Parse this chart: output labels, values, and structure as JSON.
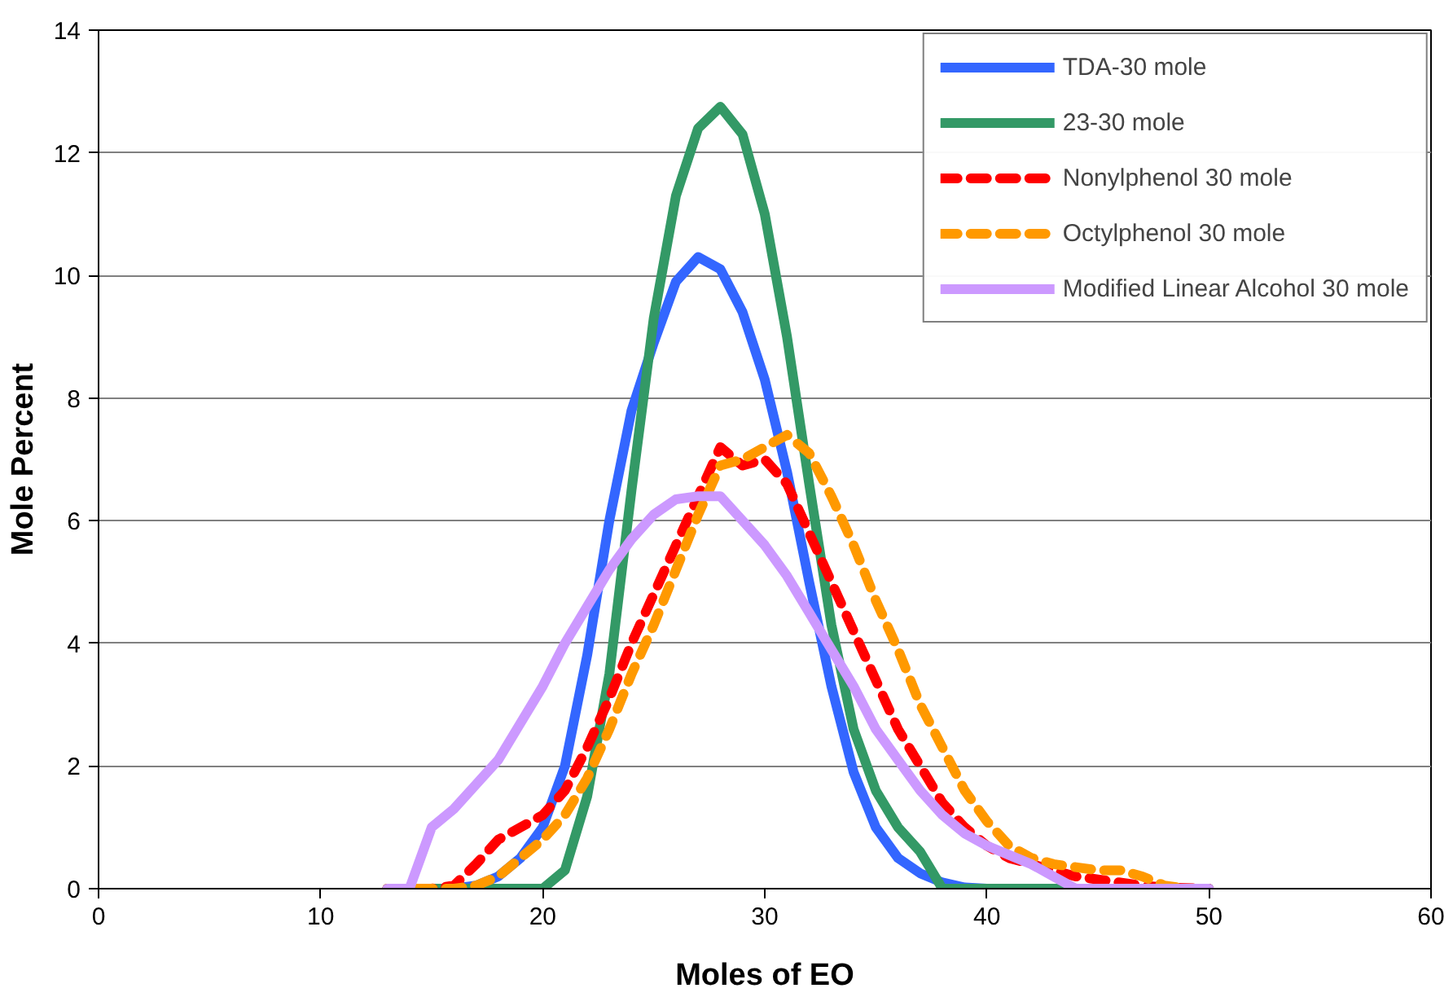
{
  "chart_data": {
    "type": "line",
    "xlabel": "Moles of EO",
    "ylabel": "Mole Percent",
    "xlim": [
      0,
      60
    ],
    "ylim": [
      0,
      14
    ],
    "xticks": [
      0,
      10,
      20,
      30,
      40,
      50,
      60
    ],
    "yticks": [
      0,
      2,
      4,
      6,
      8,
      10,
      12,
      14
    ],
    "grid": "y",
    "legend": "top right",
    "marker": "none",
    "series": [
      {
        "name": "TDA-30 mole",
        "color": "#3366ff",
        "line_style": "solid",
        "x": [
          13,
          16,
          17,
          18,
          19,
          20,
          21,
          22,
          23,
          24,
          25,
          26,
          27,
          28,
          29,
          30,
          31,
          32,
          33,
          34,
          35,
          36,
          37,
          38,
          39,
          40,
          50
        ],
        "values": [
          0,
          0,
          0.05,
          0.2,
          0.5,
          1.0,
          2.0,
          3.8,
          6.0,
          7.8,
          8.9,
          9.9,
          10.3,
          10.1,
          9.4,
          8.3,
          6.8,
          5.0,
          3.3,
          1.9,
          1.0,
          0.5,
          0.25,
          0.1,
          0.02,
          0,
          0
        ]
      },
      {
        "name": "23-30 mole",
        "color": "#339966",
        "line_style": "solid",
        "x": [
          13,
          20,
          21,
          22,
          23,
          24,
          25,
          26,
          27,
          28,
          29,
          30,
          31,
          32,
          33,
          34,
          35,
          36,
          37,
          37.5,
          38,
          50
        ],
        "values": [
          0,
          0,
          0.3,
          1.5,
          3.5,
          6.5,
          9.3,
          11.3,
          12.4,
          12.75,
          12.3,
          11.0,
          9.0,
          6.6,
          4.3,
          2.6,
          1.6,
          1.0,
          0.6,
          0.3,
          0,
          0
        ]
      },
      {
        "name": "Nonylphenol 30 mole",
        "color": "#ff0000",
        "line_style": "dashed",
        "x": [
          13,
          15,
          16,
          17,
          18,
          19,
          20,
          21,
          22,
          23,
          24,
          25,
          26,
          27,
          28,
          29,
          30,
          31,
          32,
          33,
          34,
          35,
          36,
          37,
          38,
          39,
          40,
          41,
          42,
          43,
          44,
          45,
          46,
          47,
          48,
          50
        ],
        "values": [
          0,
          0,
          0.05,
          0.4,
          0.8,
          1.0,
          1.2,
          1.6,
          2.3,
          3.1,
          4.0,
          4.8,
          5.6,
          6.4,
          7.2,
          6.9,
          7.0,
          6.6,
          5.8,
          5.0,
          4.2,
          3.4,
          2.6,
          2.0,
          1.4,
          1.0,
          0.7,
          0.5,
          0.4,
          0.3,
          0.2,
          0.15,
          0.1,
          0.05,
          0.02,
          0
        ]
      },
      {
        "name": "Octylphenol 30 mole",
        "color": "#ff9900",
        "line_style": "dashed",
        "x": [
          13,
          16,
          17,
          18,
          19,
          20,
          21,
          22,
          23,
          24,
          25,
          26,
          27,
          28,
          29,
          30,
          31,
          32,
          33,
          34,
          35,
          36,
          37,
          38,
          39,
          40,
          41,
          42,
          43,
          44,
          45,
          46,
          47,
          48,
          49,
          50
        ],
        "values": [
          0,
          0,
          0.05,
          0.2,
          0.5,
          0.8,
          1.2,
          1.8,
          2.6,
          3.5,
          4.3,
          5.2,
          6.1,
          6.9,
          7.0,
          7.2,
          7.4,
          7.1,
          6.4,
          5.6,
          4.7,
          3.9,
          3.0,
          2.3,
          1.6,
          1.1,
          0.7,
          0.5,
          0.4,
          0.35,
          0.3,
          0.3,
          0.2,
          0.05,
          0,
          0
        ]
      },
      {
        "name": "Modified Linear Alcohol 30 mole",
        "color": "#cc99ff",
        "line_style": "solid",
        "x": [
          13,
          14,
          14.5,
          15,
          16,
          17,
          18,
          19,
          20,
          21,
          22,
          23,
          24,
          25,
          26,
          27,
          28,
          29,
          30,
          31,
          32,
          33,
          34,
          35,
          36,
          37,
          38,
          39,
          40,
          41,
          42,
          43,
          44,
          50
        ],
        "values": [
          0,
          0,
          0.5,
          1.0,
          1.3,
          1.7,
          2.1,
          2.7,
          3.3,
          4.0,
          4.6,
          5.2,
          5.7,
          6.1,
          6.35,
          6.4,
          6.4,
          6.0,
          5.6,
          5.1,
          4.5,
          3.9,
          3.3,
          2.6,
          2.1,
          1.6,
          1.2,
          0.9,
          0.7,
          0.55,
          0.4,
          0.2,
          0,
          0
        ]
      }
    ]
  }
}
